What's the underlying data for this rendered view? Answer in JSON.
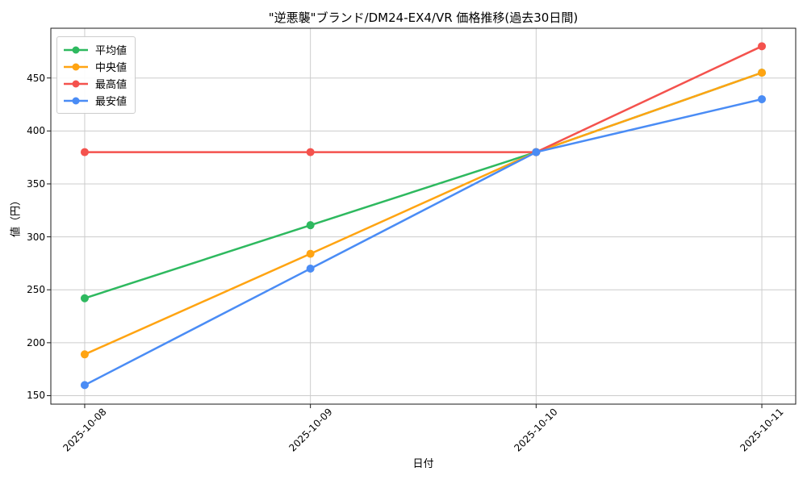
{
  "chart_data": {
    "type": "line",
    "title": "\"逆悪襲\"ブランド/DM24-EX4/VR 価格推移(過去30日間)",
    "xlabel": "日付",
    "ylabel": "値（円）",
    "x": [
      "2025-10-08",
      "2025-10-09",
      "2025-10-10",
      "2025-10-11"
    ],
    "series": [
      {
        "name": "平均値",
        "color": "#2EB95F",
        "values": [
          242,
          311,
          380,
          455
        ]
      },
      {
        "name": "中央値",
        "color": "#FFA412",
        "values": [
          189,
          284,
          380,
          455
        ]
      },
      {
        "name": "最高値",
        "color": "#F4524D",
        "values": [
          380,
          380,
          380,
          480
        ]
      },
      {
        "name": "最安値",
        "color": "#4A8CF5",
        "values": [
          160,
          270,
          380,
          430
        ]
      }
    ],
    "yticks": [
      150,
      200,
      250,
      300,
      350,
      400,
      450
    ],
    "ylim": [
      142,
      497
    ],
    "xlim": [
      -0.15,
      3.15
    ],
    "grid": true,
    "legend_position": "upper left",
    "x_tick_rotation": 45,
    "marker": "circle",
    "line_width": 2.5,
    "marker_radius": 5,
    "colors": {
      "grid": "#cccccc",
      "spine": "#1a1a1a",
      "background": "#ffffff"
    }
  }
}
